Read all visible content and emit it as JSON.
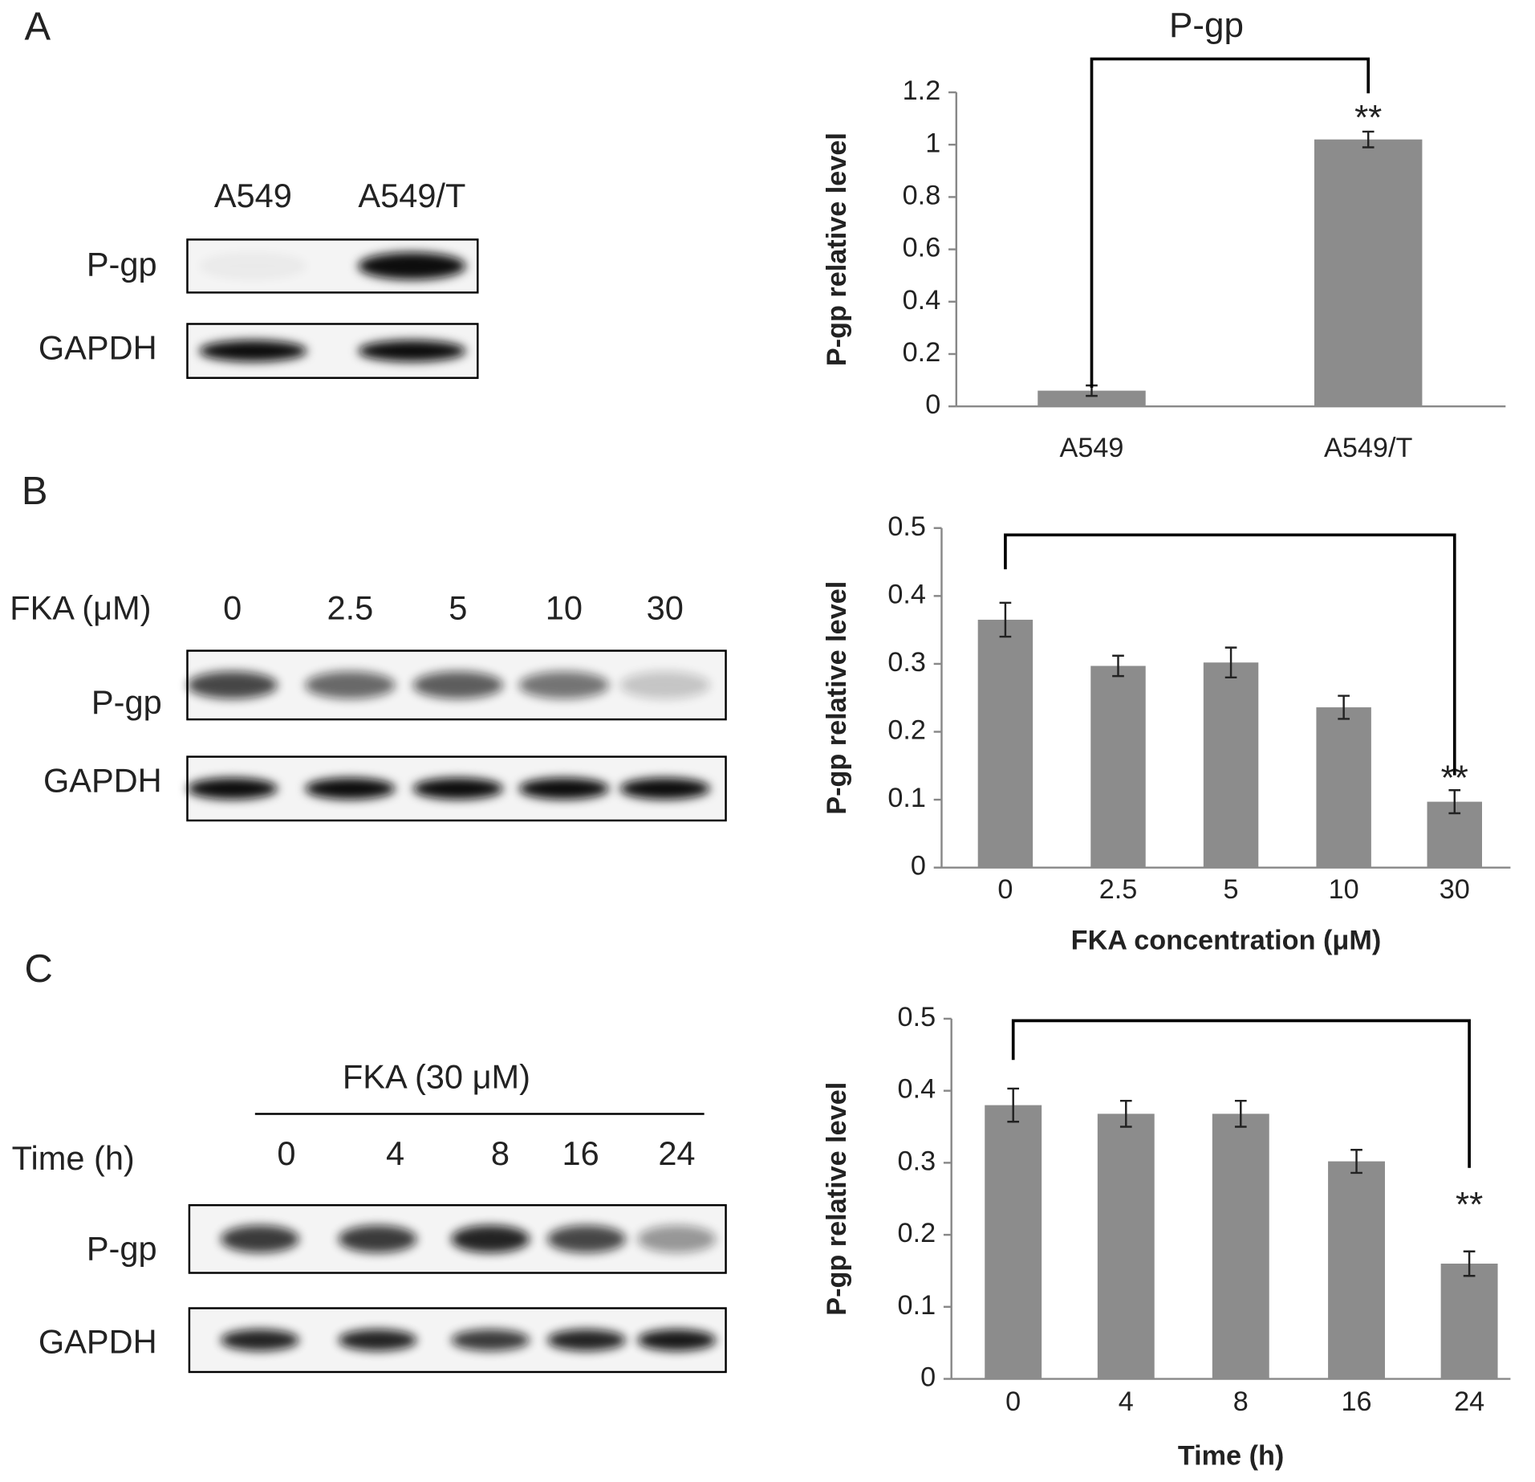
{
  "panel_labels": [
    "A",
    "B",
    "C"
  ],
  "blots": [
    {
      "lanes": [
        "A549",
        "A549/T"
      ],
      "rows": [
        "P-gp",
        "GAPDH"
      ]
    },
    {
      "header": "FKA (μM)",
      "lanes": [
        "0",
        "2.5",
        "5",
        "10",
        "30"
      ],
      "rows": [
        "P-gp",
        "GAPDH"
      ]
    },
    {
      "treatment": "FKA (30 μM)",
      "header": "Time (h)",
      "lanes": [
        "0",
        "4",
        "8",
        "16",
        "24"
      ],
      "rows": [
        "P-gp",
        "GAPDH"
      ]
    }
  ],
  "chart_data": [
    {
      "type": "bar",
      "title": "P-gp",
      "ylabel": "P-gp relative level",
      "categories": [
        "A549",
        "A549/T"
      ],
      "values": [
        0.06,
        1.02
      ],
      "errors": [
        0.02,
        0.03
      ],
      "color": "#8c8c8c",
      "ylim": [
        0,
        1.2
      ],
      "yticks": [
        0,
        0.2,
        0.4,
        0.6,
        0.8,
        1,
        1.2
      ],
      "annotation": "**"
    },
    {
      "type": "bar",
      "ylabel": "P-gp relative level",
      "xlabel": "FKA concentration  (μM)",
      "categories": [
        "0",
        "2.5",
        "5",
        "10",
        "30"
      ],
      "values": [
        0.365,
        0.297,
        0.302,
        0.236,
        0.097
      ],
      "errors": [
        0.025,
        0.015,
        0.022,
        0.017,
        0.017
      ],
      "color": "#8c8c8c",
      "ylim": [
        0,
        0.5
      ],
      "yticks": [
        0,
        0.1,
        0.2,
        0.3,
        0.4,
        0.5
      ],
      "annotation": "**"
    },
    {
      "type": "bar",
      "ylabel": "P-gp relative level",
      "xlabel": "Time (h)",
      "categories": [
        "0",
        "4",
        "8",
        "16",
        "24"
      ],
      "values": [
        0.38,
        0.368,
        0.368,
        0.302,
        0.16
      ],
      "errors": [
        0.023,
        0.018,
        0.018,
        0.016,
        0.017
      ],
      "color": "#8c8c8c",
      "ylim": [
        0,
        0.5
      ],
      "yticks": [
        0,
        0.1,
        0.2,
        0.3,
        0.4,
        0.5
      ],
      "annotation": "**"
    }
  ]
}
